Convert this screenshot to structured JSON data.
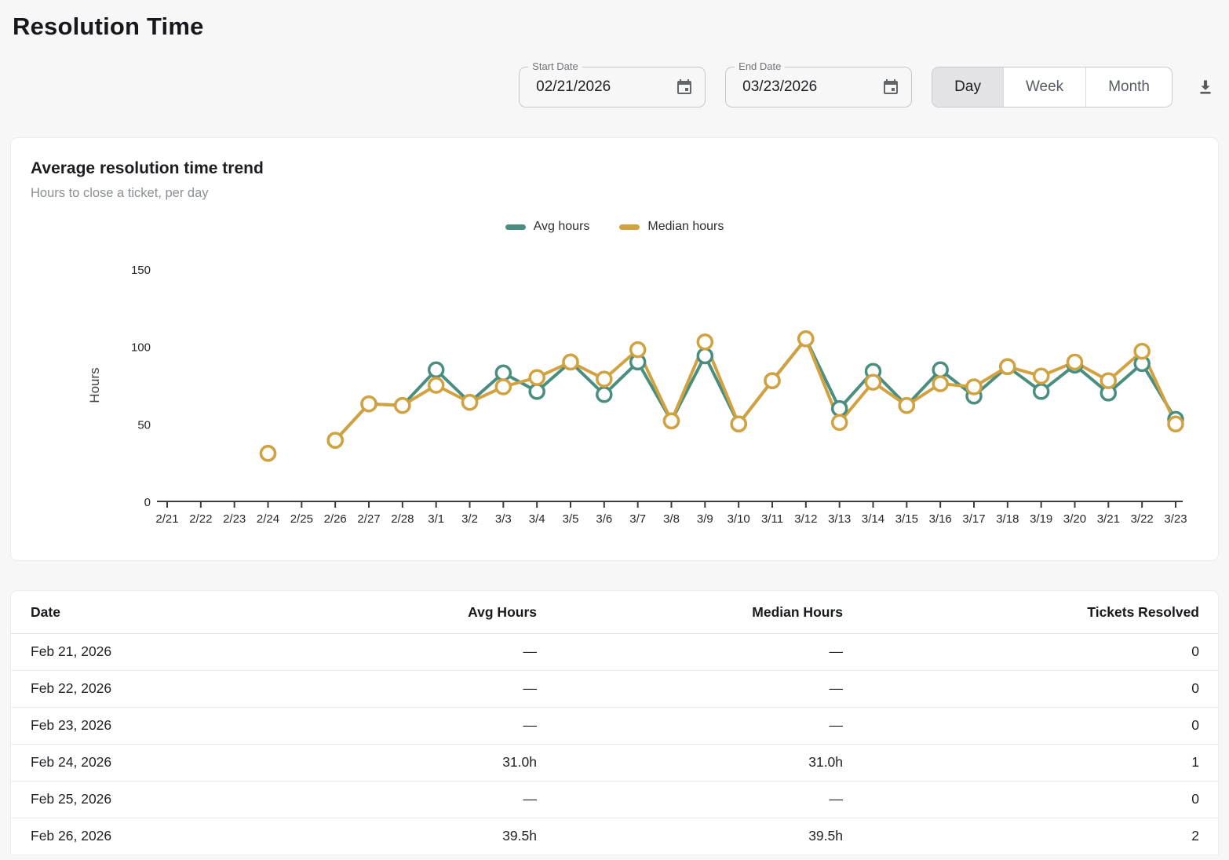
{
  "page": {
    "title": "Resolution Time"
  },
  "filters": {
    "start_date": {
      "label": "Start Date",
      "value": "02/21/2026"
    },
    "end_date": {
      "label": "End Date",
      "value": "03/23/2026"
    },
    "granularity": {
      "options": [
        "Day",
        "Week",
        "Month"
      ],
      "selected": "Day"
    }
  },
  "chart_card": {
    "title": "Average resolution time trend",
    "subtitle": "Hours to close a ticket, per day"
  },
  "chart_data": {
    "type": "line",
    "title": "Average resolution time trend",
    "xlabel": "",
    "ylabel": "Hours",
    "ylim": [
      0,
      150
    ],
    "yticks": [
      0,
      50,
      100,
      150
    ],
    "grid": false,
    "legend_position": "top-center",
    "categories": [
      "2/21",
      "2/22",
      "2/23",
      "2/24",
      "2/25",
      "2/26",
      "2/27",
      "2/28",
      "3/1",
      "3/2",
      "3/3",
      "3/4",
      "3/5",
      "3/6",
      "3/7",
      "3/8",
      "3/9",
      "3/10",
      "3/11",
      "3/12",
      "3/13",
      "3/14",
      "3/15",
      "3/16",
      "3/17",
      "3/18",
      "3/19",
      "3/20",
      "3/21",
      "3/22",
      "3/23"
    ],
    "series": [
      {
        "name": "Avg hours",
        "color": "#4a8e80",
        "values": [
          null,
          null,
          null,
          31,
          null,
          39.5,
          63,
          62,
          85,
          64,
          83,
          71,
          90,
          69,
          90,
          52,
          94,
          50,
          78,
          105,
          60,
          84,
          62,
          85,
          68,
          87,
          71,
          88,
          70,
          89,
          53
        ]
      },
      {
        "name": "Median hours",
        "color": "#d1a23f",
        "values": [
          null,
          null,
          null,
          31,
          null,
          39.5,
          63,
          62,
          75,
          64,
          74,
          80,
          90,
          79,
          98,
          52,
          103,
          50,
          78,
          105,
          51,
          77,
          62,
          76,
          74,
          87,
          81,
          90,
          78,
          97,
          50
        ]
      }
    ]
  },
  "table": {
    "columns": [
      "Date",
      "Avg Hours",
      "Median Hours",
      "Tickets Resolved"
    ],
    "rows": [
      [
        "Feb 21, 2026",
        "—",
        "—",
        "0"
      ],
      [
        "Feb 22, 2026",
        "—",
        "—",
        "0"
      ],
      [
        "Feb 23, 2026",
        "—",
        "—",
        "0"
      ],
      [
        "Feb 24, 2026",
        "31.0h",
        "31.0h",
        "1"
      ],
      [
        "Feb 25, 2026",
        "—",
        "—",
        "0"
      ],
      [
        "Feb 26, 2026",
        "39.5h",
        "39.5h",
        "2"
      ]
    ]
  },
  "colors": {
    "avg_line": "#4a8e80",
    "median_line": "#d1a23f",
    "axis": "#3a3c3f"
  }
}
